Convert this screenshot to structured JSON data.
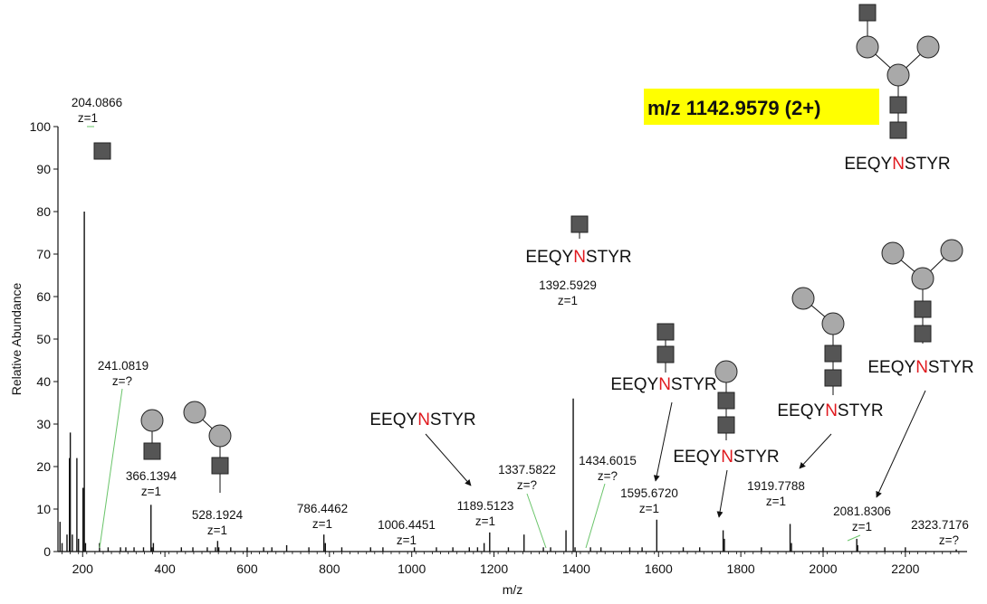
{
  "colors": {
    "hexnac": "#555555",
    "hexose": "#a9a9a9",
    "leader": "#6ac46a",
    "highlight": "#ffff00",
    "asn": "#e0191e"
  },
  "title": "m/z 1142.9579 (2+)",
  "peptide": {
    "prefix": "EEQY",
    "site": "N",
    "suffix": "STYR"
  },
  "chart_data": {
    "type": "spectrum",
    "xlabel": "m/z",
    "ylabel": "Relative Abundance",
    "xlim": [
      140,
      2350
    ],
    "ylim": [
      0,
      100
    ],
    "xticks": [
      200,
      400,
      600,
      800,
      1000,
      1200,
      1400,
      1600,
      1800,
      2000,
      2200
    ],
    "yticks": [
      0,
      10,
      20,
      30,
      40,
      50,
      60,
      70,
      80,
      90,
      100
    ],
    "peaks": [
      [
        145,
        7
      ],
      [
        150,
        2
      ],
      [
        162,
        4
      ],
      [
        168,
        22
      ],
      [
        170,
        28
      ],
      [
        175,
        4
      ],
      [
        186,
        22
      ],
      [
        190,
        3
      ],
      [
        201,
        15
      ],
      [
        204.0866,
        80
      ],
      [
        207,
        2
      ],
      [
        241.0819,
        2
      ],
      [
        262,
        1
      ],
      [
        292,
        1
      ],
      [
        305,
        1
      ],
      [
        325,
        1
      ],
      [
        348,
        1
      ],
      [
        366.1394,
        11
      ],
      [
        369,
        1
      ],
      [
        372,
        2
      ],
      [
        440,
        1
      ],
      [
        468,
        1
      ],
      [
        503,
        1
      ],
      [
        523,
        1
      ],
      [
        528.1924,
        2.5
      ],
      [
        531,
        1
      ],
      [
        560,
        1
      ],
      [
        600,
        1
      ],
      [
        640,
        1
      ],
      [
        660,
        1
      ],
      [
        696,
        1.5
      ],
      [
        750,
        1
      ],
      [
        786.4462,
        4
      ],
      [
        790,
        2
      ],
      [
        830,
        1
      ],
      [
        900,
        1
      ],
      [
        930,
        1
      ],
      [
        1006.4451,
        1
      ],
      [
        1060,
        1
      ],
      [
        1100,
        1
      ],
      [
        1140,
        1
      ],
      [
        1160,
        1
      ],
      [
        1176,
        2
      ],
      [
        1189.5123,
        4.5
      ],
      [
        1235,
        1
      ],
      [
        1273,
        4
      ],
      [
        1320,
        1
      ],
      [
        1337.5822,
        1
      ],
      [
        1375,
        5
      ],
      [
        1392.5929,
        36
      ],
      [
        1397,
        1
      ],
      [
        1434.6015,
        1
      ],
      [
        1460,
        1
      ],
      [
        1530,
        1
      ],
      [
        1560,
        1
      ],
      [
        1595.672,
        7.5
      ],
      [
        1660,
        1
      ],
      [
        1700,
        1
      ],
      [
        1757,
        5
      ],
      [
        1760,
        3
      ],
      [
        1850,
        1
      ],
      [
        1919.7788,
        6.5
      ],
      [
        1923,
        2
      ],
      [
        2000,
        1
      ],
      [
        2081.8306,
        3
      ],
      [
        2084,
        1.5
      ],
      [
        2150,
        1
      ],
      [
        2200,
        1
      ],
      [
        2323.7176,
        0.5
      ]
    ],
    "annotations": [
      {
        "mz": "204.0866",
        "z": "z=1"
      },
      {
        "mz": "241.0819",
        "z": "z=?"
      },
      {
        "mz": "366.1394",
        "z": "z=1"
      },
      {
        "mz": "528.1924",
        "z": "z=1"
      },
      {
        "mz": "786.4462",
        "z": "z=1"
      },
      {
        "mz": "1006.4451",
        "z": "z=1"
      },
      {
        "mz": "1189.5123",
        "z": "z=1"
      },
      {
        "mz": "1337.5822",
        "z": "z=?"
      },
      {
        "mz": "1392.5929",
        "z": "z=1"
      },
      {
        "mz": "1434.6015",
        "z": "z=?"
      },
      {
        "mz": "1595.6720",
        "z": "z=1"
      },
      {
        "mz": "1919.7788",
        "z": "z=1"
      },
      {
        "mz": "2081.8306",
        "z": "z=1"
      },
      {
        "mz": "2323.7176",
        "z": "z=?"
      }
    ]
  }
}
